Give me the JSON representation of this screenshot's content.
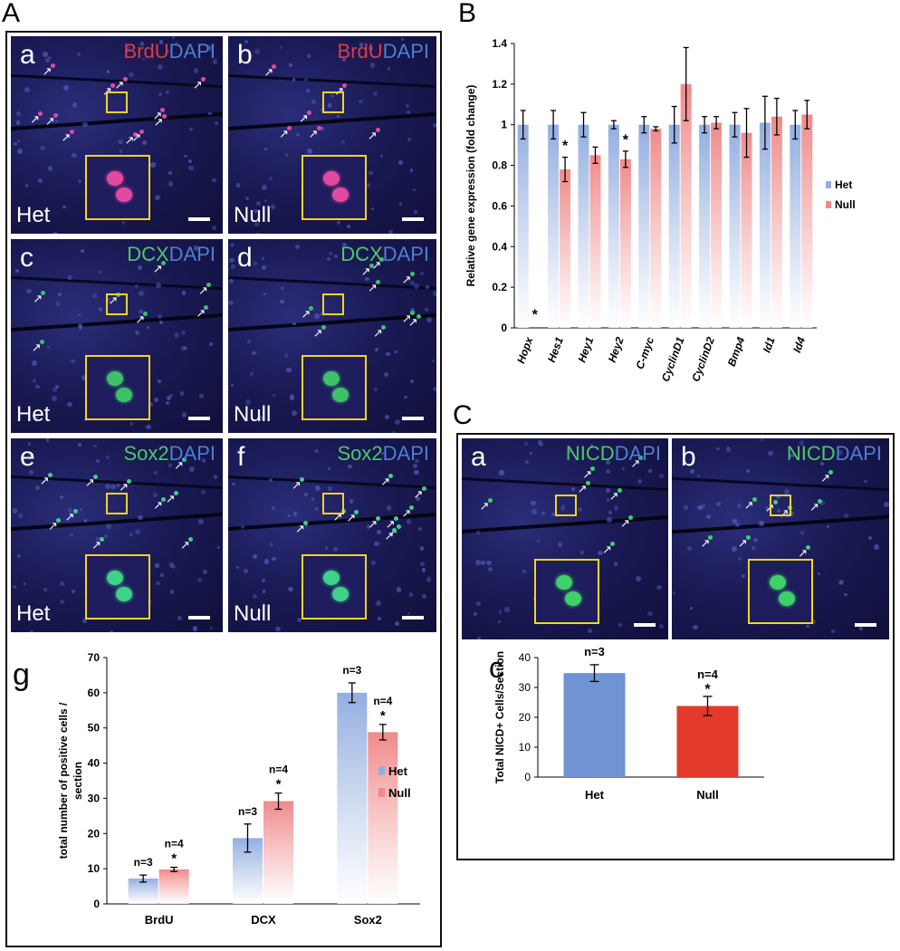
{
  "figure": {
    "panel_labels": {
      "A": "A",
      "B": "B",
      "C": "C"
    },
    "A": {
      "micrographs": [
        {
          "id": "a",
          "stain1": "BrdU",
          "stain2": "DAPI",
          "genotype": "Het",
          "stain1_color": "#e03a4a",
          "cell_color": "#e04aa0"
        },
        {
          "id": "b",
          "stain1": "BrdU",
          "stain2": "DAPI",
          "genotype": "Null",
          "stain1_color": "#e03a4a",
          "cell_color": "#e04aa0"
        },
        {
          "id": "c",
          "stain1": "DCX",
          "stain2": "DAPI",
          "genotype": "Het",
          "stain1_color": "#4fc86a",
          "cell_color": "#3fbf6a"
        },
        {
          "id": "d",
          "stain1": "DCX",
          "stain2": "DAPI",
          "genotype": "Null",
          "stain1_color": "#4fc86a",
          "cell_color": "#3fbf6a"
        },
        {
          "id": "e",
          "stain1": "Sox2",
          "stain2": "DAPI",
          "genotype": "Het",
          "stain1_color": "#4fc86a",
          "cell_color": "#3fd08a"
        },
        {
          "id": "f",
          "stain1": "Sox2",
          "stain2": "DAPI",
          "genotype": "Null",
          "stain1_color": "#4fc86a",
          "cell_color": "#3fd08a"
        }
      ],
      "dapi_color": "#4f7fd0"
    },
    "C": {
      "micrographs": [
        {
          "id": "a",
          "stain1": "NICD",
          "stain2": "DAPI",
          "stain1_color": "#4fc86a",
          "cell_color": "#3fd06a"
        },
        {
          "id": "b",
          "stain1": "NICD",
          "stain2": "DAPI",
          "stain1_color": "#4fc86a",
          "cell_color": "#3fd06a"
        }
      ]
    }
  },
  "chart_data": [
    {
      "id": "B",
      "type": "bar",
      "title": "",
      "xlabel": "",
      "ylabel": "Relative gene expression (fold change)",
      "ylim": [
        0,
        1.4
      ],
      "yticks": [
        "0",
        "0.2",
        "0.4",
        "0.6",
        "0.8",
        "1",
        "1.2",
        "1.4"
      ],
      "categories": [
        "Hopx",
        "Hes1",
        "Hey1",
        "Hey2",
        "C-myc",
        "CyclinD1",
        "CyclinD2",
        "Bmp4",
        "Id1",
        "Id4"
      ],
      "series": [
        {
          "name": "Het",
          "color": "#93aee0",
          "values": [
            1.0,
            1.0,
            1.0,
            1.0,
            1.0,
            1.0,
            1.0,
            1.0,
            1.01,
            1.0
          ],
          "errors": [
            0.07,
            0.07,
            0.06,
            0.02,
            0.04,
            0.09,
            0.04,
            0.06,
            0.13,
            0.07
          ]
        },
        {
          "name": "Null",
          "color": "#f08a8a",
          "values": [
            0.0,
            0.78,
            0.85,
            0.83,
            0.98,
            1.2,
            1.01,
            0.96,
            1.04,
            1.05
          ],
          "errors": [
            0.0,
            0.06,
            0.04,
            0.04,
            0.01,
            0.18,
            0.03,
            0.12,
            0.09,
            0.07
          ]
        }
      ],
      "annotations": [
        "*",
        "*",
        "*"
      ],
      "legend": {
        "position": "right",
        "entries": [
          "Het",
          "Null"
        ]
      }
    },
    {
      "id": "g",
      "panel_label": "g",
      "type": "bar",
      "title": "",
      "xlabel": "",
      "ylabel": "total number of positive cells / section",
      "ylabel_lines": [
        "total number of positive cells /",
        "section"
      ],
      "ylim": [
        0,
        70
      ],
      "yticks": [
        "0",
        "10",
        "20",
        "30",
        "40",
        "50",
        "60",
        "70"
      ],
      "categories": [
        "BrdU",
        "DCX",
        "Sox2"
      ],
      "series": [
        {
          "name": "Het",
          "color": "#93aee0",
          "values": [
            7.2,
            18.7,
            60.0
          ],
          "errors": [
            1.0,
            4.0,
            2.8
          ],
          "n_labels": [
            "n=3",
            "n=3",
            "n=3"
          ]
        },
        {
          "name": "Null",
          "color": "#f08a8a",
          "values": [
            9.8,
            29.2,
            48.8
          ],
          "errors": [
            0.6,
            2.3,
            2.2
          ],
          "n_labels": [
            "n=4",
            "n=4",
            "n=4"
          ]
        }
      ],
      "annotations": [
        "*",
        "*",
        "*"
      ],
      "legend": {
        "position": "right",
        "entries": [
          "Het",
          "Null"
        ]
      }
    },
    {
      "id": "C-c",
      "panel_label": "c",
      "type": "bar",
      "title": "",
      "xlabel": "",
      "ylabel": "Total NICD+ Cells/Section",
      "ylim": [
        0,
        40
      ],
      "yticks": [
        "0",
        "10",
        "20",
        "30",
        "40"
      ],
      "categories": [
        "Het",
        "Null"
      ],
      "series": [
        {
          "name": "Total NICD+ Cells/Section",
          "values": [
            34.8,
            23.8
          ],
          "errors": [
            2.8,
            3.2
          ],
          "colors": [
            "#6f93d3",
            "#e43a2b"
          ],
          "n_labels": [
            "n=3",
            "n=4"
          ]
        }
      ],
      "annotations": [
        "*"
      ]
    }
  ]
}
